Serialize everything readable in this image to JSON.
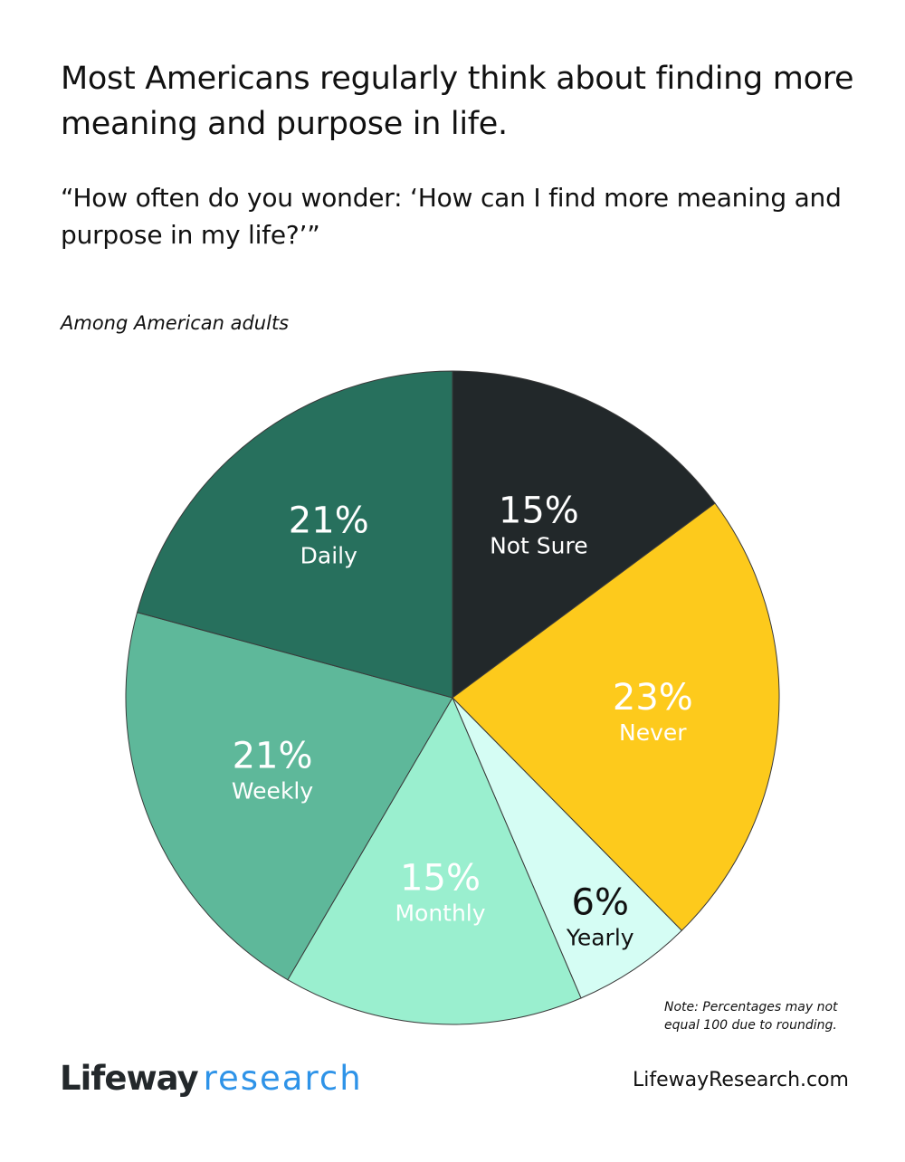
{
  "title": "Most Americans regularly think about finding more meaning and purpose in life.",
  "subtitle": "“How often do you wonder: ‘How can I find more meaning and purpose in my life?’”",
  "population": "Among American adults",
  "note": "Note: Percentages may not equal 100 due to rounding.",
  "logo": {
    "part1": "Lifeway",
    "part2": "research"
  },
  "url": "LifewayResearch.com",
  "chart_data": {
    "type": "pie",
    "start": "top, clockwise",
    "categories": [
      "Not Sure",
      "Never",
      "Yearly",
      "Monthly",
      "Weekly",
      "Daily"
    ],
    "values": [
      15,
      23,
      6,
      15,
      21,
      21
    ],
    "data_labels": [
      "15%",
      "23%",
      "6%",
      "15%",
      "21%",
      "21%"
    ],
    "colors": [
      "#22282a",
      "#fdca1c",
      "#d5fdf4",
      "#9aefcf",
      "#5eb89a",
      "#27705d"
    ],
    "label_colors": [
      "#ffffff",
      "#ffffff",
      "#111111",
      "#ffffff",
      "#ffffff",
      "#ffffff"
    ]
  }
}
